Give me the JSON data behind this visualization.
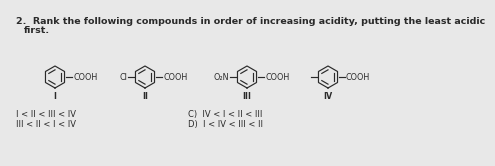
{
  "title_line1": "2.  Rank the following compounds in order of increasing acidity, putting the least acidic",
  "title_line2": "first.",
  "answer_A": "I < II < III < IV",
  "answer_B": "III < II < I < IV",
  "answer_C": "C)  IV < I < II < III",
  "answer_D": "D)  I < IV < III < II",
  "label_I": "I",
  "label_II": "II",
  "label_III": "III",
  "label_IV": "IV",
  "bg_color": "#e8e8e8",
  "text_color": "#2a2a2a",
  "line_color": "#2a2a2a",
  "font_size_title": 6.8,
  "font_size_body": 6.0,
  "font_size_label": 5.8
}
